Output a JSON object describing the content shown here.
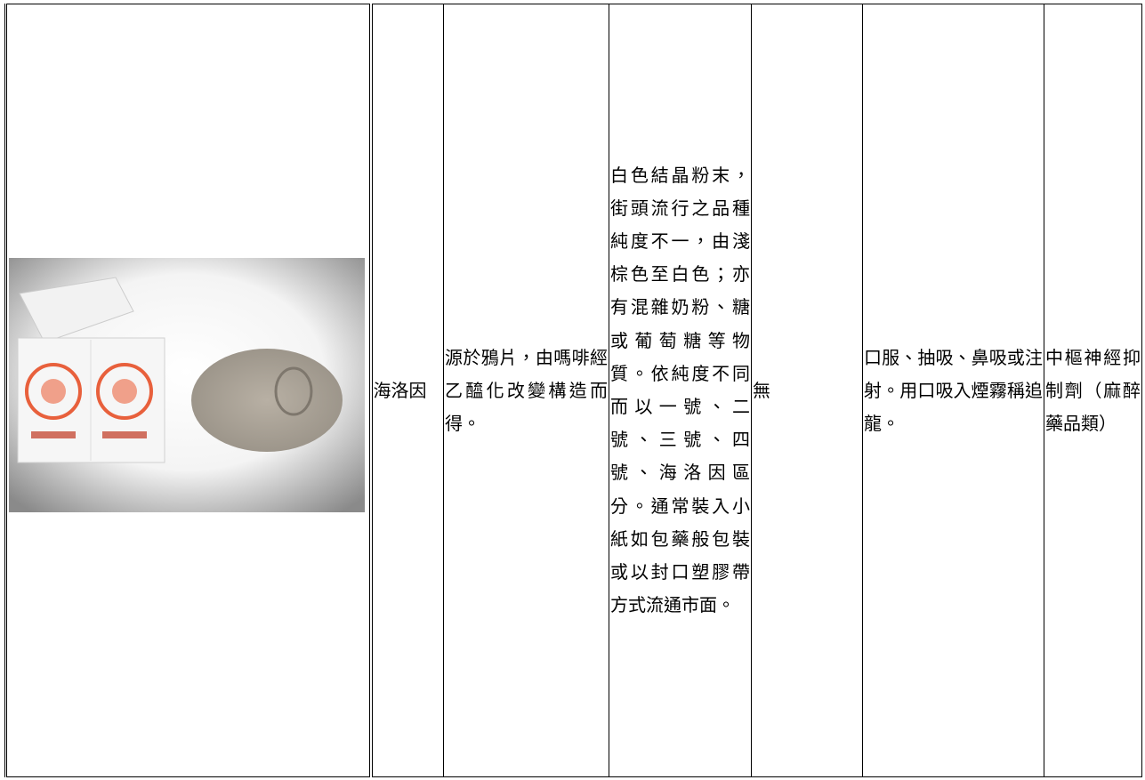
{
  "table": {
    "rows": [
      [
        "海洛因",
        "源於鴉片，由嗎啡經乙醯化改變構造而得。",
        "白色結晶粉末，街頭流行之品種純度不一，由淺棕色至白色；亦有混雜奶粉、糖或葡萄糖等物質。依純度不同而以一號、二號、三號、四號、海洛因區分。通常裝入小紙如包藥般包裝或以封口塑膠帶方式流通市面。",
        "無",
        "口服、抽吸、鼻吸或注射。用口吸入煙霧稱追龍。",
        "中樞神經抑制劑（麻醉藥品類）"
      ]
    ]
  }
}
